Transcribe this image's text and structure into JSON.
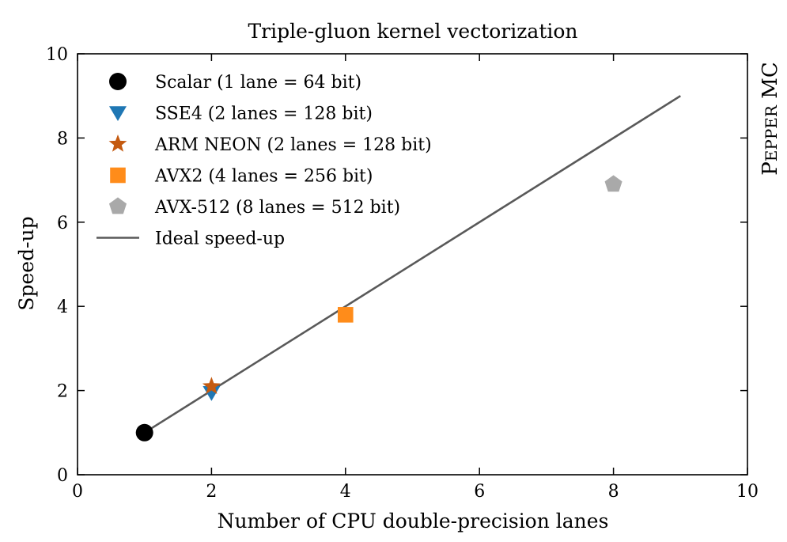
{
  "chart_data": {
    "type": "scatter",
    "title": "Triple-gluon kernel vectorization",
    "xlabel": "Number of CPU double-precision lanes",
    "ylabel": "Speed-up",
    "side_label_prefix": "P",
    "side_label_smallcaps": "EPPER",
    "side_label_suffix": " MC",
    "xlim": [
      0,
      10
    ],
    "ylim": [
      0,
      10
    ],
    "xticks": [
      0,
      2,
      4,
      6,
      8,
      10
    ],
    "yticks": [
      0,
      2,
      4,
      6,
      8,
      10
    ],
    "xtick_labels": [
      "0",
      "2",
      "4",
      "6",
      "8",
      "10"
    ],
    "ytick_labels": [
      "0",
      "2",
      "4",
      "6",
      "8",
      "10"
    ],
    "grid": false,
    "legend_position": "top-left",
    "series": [
      {
        "name": "Scalar (1 lane = 64 bit)",
        "marker": "circle",
        "color": "#000000",
        "x": [
          1
        ],
        "y": [
          1.0
        ]
      },
      {
        "name": "SSE4 (2 lanes = 128 bit)",
        "marker": "triangle-down",
        "color": "#1f77b4",
        "x": [
          2
        ],
        "y": [
          1.95
        ]
      },
      {
        "name": "ARM NEON (2 lanes = 128 bit)",
        "marker": "star",
        "color": "#c45a10",
        "x": [
          2
        ],
        "y": [
          2.1
        ]
      },
      {
        "name": "AVX2 (4 lanes = 256 bit)",
        "marker": "square",
        "color": "#ff8c1a",
        "x": [
          4
        ],
        "y": [
          3.8
        ]
      },
      {
        "name": "AVX-512 (8 lanes = 512 bit)",
        "marker": "pentagon",
        "color": "#a9a9a9",
        "x": [
          8
        ],
        "y": [
          6.9
        ]
      }
    ],
    "ideal_line": {
      "name": "Ideal speed-up",
      "color": "#595959",
      "x": [
        1,
        9
      ],
      "y": [
        1,
        9
      ]
    }
  }
}
